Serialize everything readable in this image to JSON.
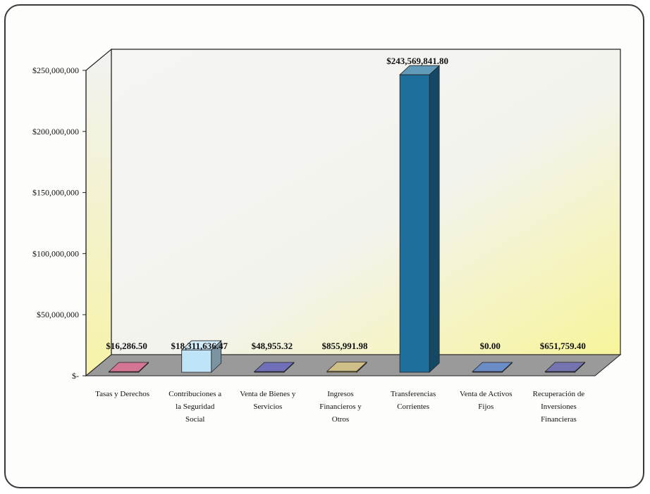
{
  "chart_data": {
    "type": "bar",
    "categories": [
      [
        "Tasas y Derechos"
      ],
      [
        "Contribuciones a",
        "la Seguridad",
        "Social"
      ],
      [
        "Venta de Bienes y",
        "Servicios"
      ],
      [
        "Ingresos",
        "Financieros y",
        "Otros"
      ],
      [
        "Transferencias",
        "Corrientes"
      ],
      [
        "Venta de Activos",
        "Fijos"
      ],
      [
        "Recuperación de",
        "Inversiones",
        "Financieras"
      ]
    ],
    "values": [
      16286.5,
      18311636.47,
      48955.32,
      855991.98,
      243569841.8,
      0.0,
      651759.4
    ],
    "data_labels": [
      "$16,286.50",
      "$18,311,636.47",
      "$48,955.32",
      "$855,991.98",
      "$243,569,841.80",
      "$0.00",
      "$651,759.40"
    ],
    "y_ticks": [
      "$-",
      "$50,000,000",
      "$100,000,000",
      "$150,000,000",
      "$200,000,000",
      "$250,000,000"
    ],
    "ylim": [
      0,
      250000000
    ],
    "grid": false,
    "colors": [
      "#c23a66",
      "#bfe3f7",
      "#33339a",
      "#b9a456",
      "#1f6f9c",
      "#2a5cb0",
      "#3a3890"
    ],
    "wall_gradient": [
      "#f4f4f2",
      "#f8f6c0"
    ]
  }
}
